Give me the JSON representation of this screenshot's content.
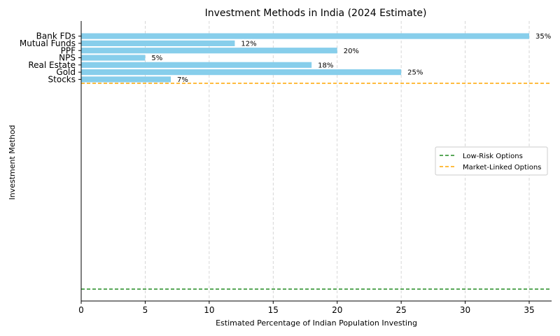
{
  "chart_data": {
    "type": "bar",
    "orientation": "horizontal",
    "title": "Investment Methods in India (2024 Estimate)",
    "xlabel": "Estimated Percentage of Indian Population Investing",
    "ylabel": "Investment Method",
    "categories": [
      "Bank FDs",
      "Mutual Funds",
      "PPF",
      "NPS",
      "Real Estate",
      "Gold",
      "Stocks"
    ],
    "values": [
      35,
      12,
      20,
      5,
      18,
      25,
      7
    ],
    "data_labels": [
      "35%",
      "12%",
      "20%",
      "5%",
      "18%",
      "25%",
      "7%"
    ],
    "xlim": [
      0,
      36.75
    ],
    "xticks": [
      0,
      5,
      10,
      15,
      20,
      25,
      30,
      35
    ],
    "x_grid": true,
    "bar_color": "#87CEEB",
    "reference_lines": [
      {
        "name": "Low-Risk Options",
        "color": "#228B22",
        "style": "dashed"
      },
      {
        "name": "Market-Linked Options",
        "color": "#FFA500",
        "style": "dashed"
      }
    ],
    "legend_position": "center-right"
  }
}
